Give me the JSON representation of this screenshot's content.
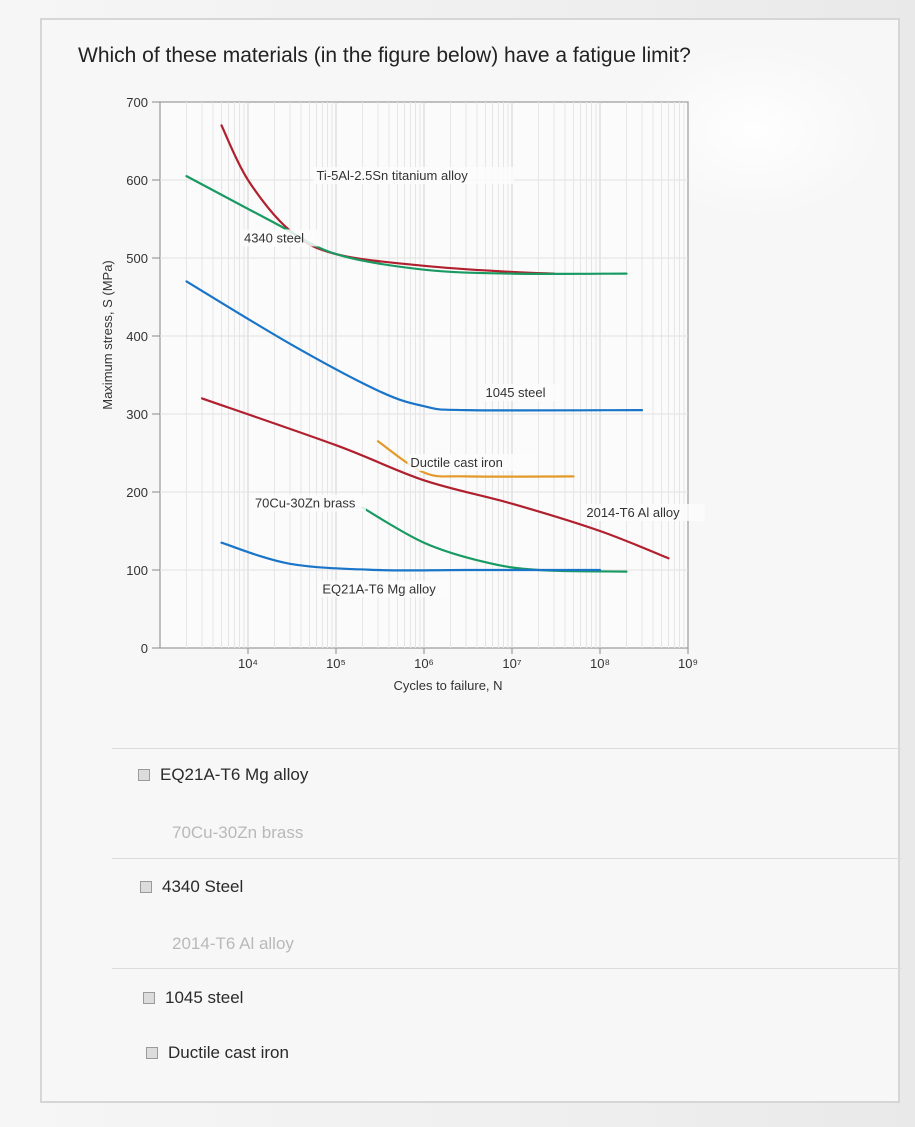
{
  "question": {
    "text": "Which of these materials (in the figure below) have a fatigue limit?"
  },
  "chart_data": {
    "type": "line",
    "xlabel": "Cycles to failure, N",
    "ylabel": "Maximum stress, S (MPa)",
    "x_scale": "log",
    "xlim": [
      1000,
      1000000000
    ],
    "ylim": [
      0,
      700
    ],
    "x_ticks": [
      10000,
      100000,
      1000000,
      10000000,
      100000000,
      1000000000
    ],
    "x_tick_labels": [
      "10⁴",
      "10⁵",
      "10⁶",
      "10⁷",
      "10⁸",
      "10⁹"
    ],
    "y_ticks": [
      0,
      100,
      200,
      300,
      400,
      500,
      600,
      700
    ],
    "y_tick_labels": [
      "0",
      "100",
      "200",
      "300",
      "400",
      "500",
      "600",
      "700"
    ],
    "grid": true,
    "series": [
      {
        "name": "Ti-5Al-2.5Sn titanium alloy",
        "color": "#b0202e",
        "points": [
          [
            5000,
            670
          ],
          [
            10000,
            600
          ],
          [
            30000,
            535
          ],
          [
            100000,
            505
          ],
          [
            1000000,
            490
          ],
          [
            10000000,
            482
          ],
          [
            30000000,
            480
          ]
        ]
      },
      {
        "name": "4340 steel",
        "color": "#1a9a63",
        "points": [
          [
            2000,
            605
          ],
          [
            20000,
            545
          ],
          [
            100000,
            505
          ],
          [
            1000000,
            485
          ],
          [
            10000000,
            480
          ],
          [
            200000000,
            480
          ]
        ]
      },
      {
        "name": "1045 steel",
        "color": "#1a75c8",
        "points": [
          [
            2000,
            470
          ],
          [
            30000,
            390
          ],
          [
            300000,
            330
          ],
          [
            1000000,
            310
          ],
          [
            3000000,
            305
          ],
          [
            300000000,
            305
          ]
        ]
      },
      {
        "name": "Ductile cast iron",
        "color": "#e39a2a",
        "points": [
          [
            300000,
            265
          ],
          [
            1000000,
            225
          ],
          [
            3000000,
            220
          ],
          [
            50000000,
            220
          ]
        ]
      },
      {
        "name": "2014-T6 Al alloy",
        "color": "#b0202e",
        "points": [
          [
            3000,
            320
          ],
          [
            100000,
            260
          ],
          [
            1000000,
            215
          ],
          [
            10000000,
            185
          ],
          [
            100000000,
            150
          ],
          [
            600000000,
            115
          ]
        ]
      },
      {
        "name": "70Cu-30Zn brass",
        "color": "#1a9a63",
        "points": [
          [
            200000,
            180
          ],
          [
            1000000,
            135
          ],
          [
            5000000,
            110
          ],
          [
            20000000,
            100
          ],
          [
            200000000,
            98
          ]
        ]
      },
      {
        "name": "EQ21A-T6 Mg alloy",
        "color": "#1a75c8",
        "points": [
          [
            5000,
            135
          ],
          [
            30000,
            108
          ],
          [
            300000,
            100
          ],
          [
            3000000,
            100
          ],
          [
            100000000,
            100
          ]
        ]
      }
    ],
    "annotations": [
      {
        "text": "Ti-5Al-2.5Sn titanium alloy",
        "x": 60000,
        "y": 600
      },
      {
        "text": "4340 steel",
        "x": 9000,
        "y": 520
      },
      {
        "text": "1045 steel",
        "x": 5000000,
        "y": 322
      },
      {
        "text": "Ductile cast iron",
        "x": 700000,
        "y": 232
      },
      {
        "text": "70Cu-30Zn brass",
        "x": 12000,
        "y": 180
      },
      {
        "text": "2014-T6 Al alloy",
        "x": 70000000,
        "y": 168
      },
      {
        "text": "EQ21A-T6 Mg alloy",
        "x": 70000,
        "y": 70
      }
    ]
  },
  "options": [
    {
      "label": "EQ21A-T6 Mg alloy",
      "faded": false
    },
    {
      "label": "70Cu-30Zn brass",
      "faded": true
    },
    {
      "label": "4340 Steel",
      "faded": false
    },
    {
      "label": "2014-T6 Al alloy",
      "faded": true
    },
    {
      "label": "1045 steel",
      "faded": false
    },
    {
      "label": "Ductile cast iron",
      "faded": false
    }
  ]
}
